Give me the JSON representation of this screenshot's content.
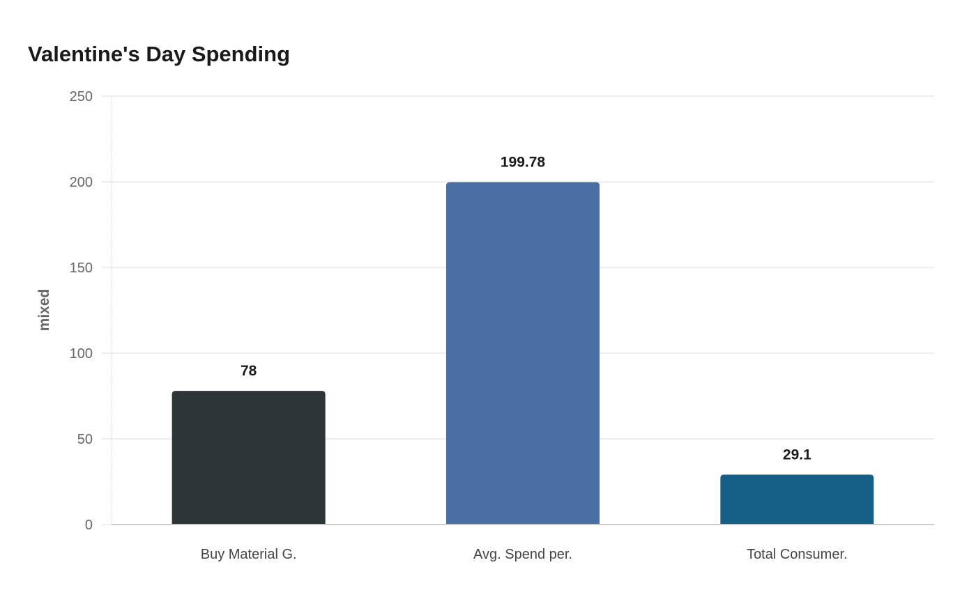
{
  "chart_data": {
    "type": "bar",
    "title": "Valentine's Day Spending",
    "xlabel": "",
    "ylabel": "mixed",
    "categories": [
      "Buy Material G.",
      "Avg. Spend per.",
      "Total Consumer."
    ],
    "values": [
      78,
      199.78,
      29.1
    ],
    "data_labels": [
      "78",
      "199.78",
      "29.1"
    ],
    "colors": [
      "#2e3538",
      "#4a6fa5",
      "#166087"
    ],
    "ylim": [
      0,
      250
    ],
    "yticks": [
      0,
      50,
      100,
      150,
      200,
      250
    ],
    "grid": true,
    "legend": "none"
  }
}
